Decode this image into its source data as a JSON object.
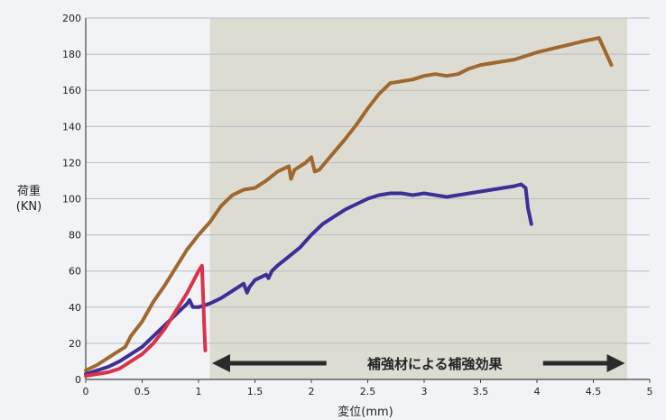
{
  "chart_data": {
    "type": "line",
    "ylabel_line1": "荷重",
    "ylabel_line2": "(KN)",
    "xlabel": "変位(mm)",
    "xlim": [
      0,
      5
    ],
    "ylim": [
      0,
      200
    ],
    "x_ticks": [
      "0",
      "0.5",
      "1",
      "1.5",
      "2",
      "2.5",
      "3",
      "3.5",
      "4",
      "4.5",
      "5"
    ],
    "y_ticks": [
      "0",
      "20",
      "40",
      "60",
      "80",
      "100",
      "120",
      "140",
      "160",
      "180",
      "200"
    ],
    "grid": "horizontal",
    "shaded_region_x": [
      1.1,
      4.8
    ],
    "annotation": {
      "text": "補強材による補強効果",
      "arrow_from_x": 1.12,
      "arrow_to_x": 4.78,
      "y": 9
    },
    "series": [
      {
        "color": "#a0672e",
        "points": [
          [
            0,
            5
          ],
          [
            0.1,
            8
          ],
          [
            0.2,
            12
          ],
          [
            0.3,
            16
          ],
          [
            0.35,
            18
          ],
          [
            0.4,
            24
          ],
          [
            0.5,
            32
          ],
          [
            0.6,
            43
          ],
          [
            0.7,
            52
          ],
          [
            0.8,
            62
          ],
          [
            0.9,
            72
          ],
          [
            1.0,
            80
          ],
          [
            1.1,
            87
          ],
          [
            1.2,
            96
          ],
          [
            1.3,
            102
          ],
          [
            1.4,
            105
          ],
          [
            1.5,
            106
          ],
          [
            1.6,
            110
          ],
          [
            1.7,
            115
          ],
          [
            1.8,
            118
          ],
          [
            1.82,
            111
          ],
          [
            1.85,
            116
          ],
          [
            1.9,
            118
          ],
          [
            1.95,
            120
          ],
          [
            2.0,
            123
          ],
          [
            2.03,
            115
          ],
          [
            2.07,
            116
          ],
          [
            2.15,
            122
          ],
          [
            2.3,
            133
          ],
          [
            2.4,
            141
          ],
          [
            2.5,
            150
          ],
          [
            2.6,
            158
          ],
          [
            2.7,
            164
          ],
          [
            2.8,
            165
          ],
          [
            2.9,
            166
          ],
          [
            3.0,
            168
          ],
          [
            3.1,
            169
          ],
          [
            3.2,
            168
          ],
          [
            3.3,
            169
          ],
          [
            3.4,
            172
          ],
          [
            3.5,
            174
          ],
          [
            3.6,
            175
          ],
          [
            3.7,
            176
          ],
          [
            3.8,
            177
          ],
          [
            3.9,
            179
          ],
          [
            4.0,
            181
          ],
          [
            4.2,
            184
          ],
          [
            4.4,
            187
          ],
          [
            4.55,
            189
          ],
          [
            4.66,
            174
          ]
        ]
      },
      {
        "color": "#3c2f97",
        "points": [
          [
            0,
            3
          ],
          [
            0.1,
            5
          ],
          [
            0.2,
            7
          ],
          [
            0.3,
            10
          ],
          [
            0.4,
            14
          ],
          [
            0.5,
            18
          ],
          [
            0.6,
            24
          ],
          [
            0.7,
            30
          ],
          [
            0.8,
            36
          ],
          [
            0.9,
            42
          ],
          [
            0.92,
            44
          ],
          [
            0.95,
            40
          ],
          [
            1.0,
            40
          ],
          [
            1.1,
            42
          ],
          [
            1.2,
            45
          ],
          [
            1.3,
            49
          ],
          [
            1.4,
            53
          ],
          [
            1.43,
            48
          ],
          [
            1.45,
            51
          ],
          [
            1.5,
            55
          ],
          [
            1.6,
            58
          ],
          [
            1.62,
            56
          ],
          [
            1.65,
            60
          ],
          [
            1.7,
            63
          ],
          [
            1.8,
            68
          ],
          [
            1.9,
            73
          ],
          [
            2.0,
            80
          ],
          [
            2.1,
            86
          ],
          [
            2.2,
            90
          ],
          [
            2.3,
            94
          ],
          [
            2.4,
            97
          ],
          [
            2.5,
            100
          ],
          [
            2.6,
            102
          ],
          [
            2.7,
            103
          ],
          [
            2.8,
            103
          ],
          [
            2.9,
            102
          ],
          [
            3.0,
            103
          ],
          [
            3.1,
            102
          ],
          [
            3.2,
            101
          ],
          [
            3.3,
            102
          ],
          [
            3.4,
            103
          ],
          [
            3.5,
            104
          ],
          [
            3.6,
            105
          ],
          [
            3.7,
            106
          ],
          [
            3.8,
            107
          ],
          [
            3.86,
            108
          ],
          [
            3.9,
            106
          ],
          [
            3.92,
            95
          ],
          [
            3.95,
            86
          ]
        ]
      },
      {
        "color": "#d8334a",
        "points": [
          [
            0,
            2
          ],
          [
            0.1,
            3
          ],
          [
            0.2,
            4
          ],
          [
            0.3,
            6
          ],
          [
            0.4,
            10
          ],
          [
            0.5,
            14
          ],
          [
            0.6,
            20
          ],
          [
            0.7,
            28
          ],
          [
            0.8,
            38
          ],
          [
            0.9,
            48
          ],
          [
            0.95,
            54
          ],
          [
            1.0,
            60
          ],
          [
            1.03,
            63
          ],
          [
            1.05,
            30
          ],
          [
            1.06,
            16
          ]
        ]
      }
    ]
  }
}
